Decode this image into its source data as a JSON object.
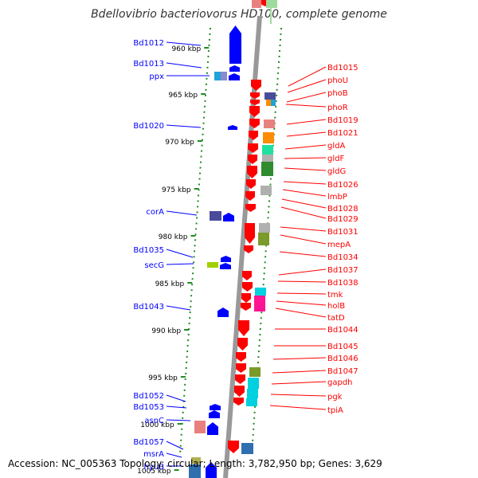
{
  "title": "Bdellovibrio bacteriovorus HD100, complete genome",
  "footer": {
    "text": "Accession: NC_005363    Topology: circular; Length: 3,782,950 bp; Genes: 3,629"
  },
  "colors": {
    "forward_strand": "#0000ff",
    "reverse_strand": "#ff0000",
    "backbone": "#999999",
    "tick": "#228b22"
  },
  "ticks": [
    "960 kbp",
    "965 kbp",
    "970 kbp",
    "975 kbp",
    "980 kbp",
    "985 kbp",
    "990 kbp",
    "995 kbp",
    "1000 kbp",
    "1005 kbp"
  ],
  "left_labels": [
    "Bd1012",
    "Bd1013",
    "ppx",
    "Bd1020",
    "corA",
    "Bd1035",
    "secG",
    "Bd1043",
    "Bd1052",
    "Bd1053",
    "asnC",
    "Bd1057",
    "msrA",
    "hyuB"
  ],
  "right_labels": [
    "Bd1015",
    "phoU",
    "phoB",
    "phoR",
    "Bd1019",
    "Bd1021",
    "gldA",
    "gldF",
    "gldG",
    "Bd1026",
    "lmbP",
    "Bd1028",
    "Bd1029",
    "Bd1031",
    "mepA",
    "Bd1034",
    "Bd1037",
    "Bd1038",
    "tmk",
    "holB",
    "tatD",
    "Bd1044",
    "Bd1045",
    "Bd1046",
    "Bd1047",
    "gapdh",
    "pgk",
    "tpiA"
  ],
  "category_colors": [
    "#4b4b9b",
    "#1fa3d8",
    "#8a8ad0",
    "#e88080",
    "#ff8c00",
    "#20e0a0",
    "#2e8b2e",
    "#b0b0b0",
    "#7a9a2a",
    "#00d0e0",
    "#ff1493",
    "#a0d000",
    "#2f6fb0",
    "#b0b050"
  ]
}
